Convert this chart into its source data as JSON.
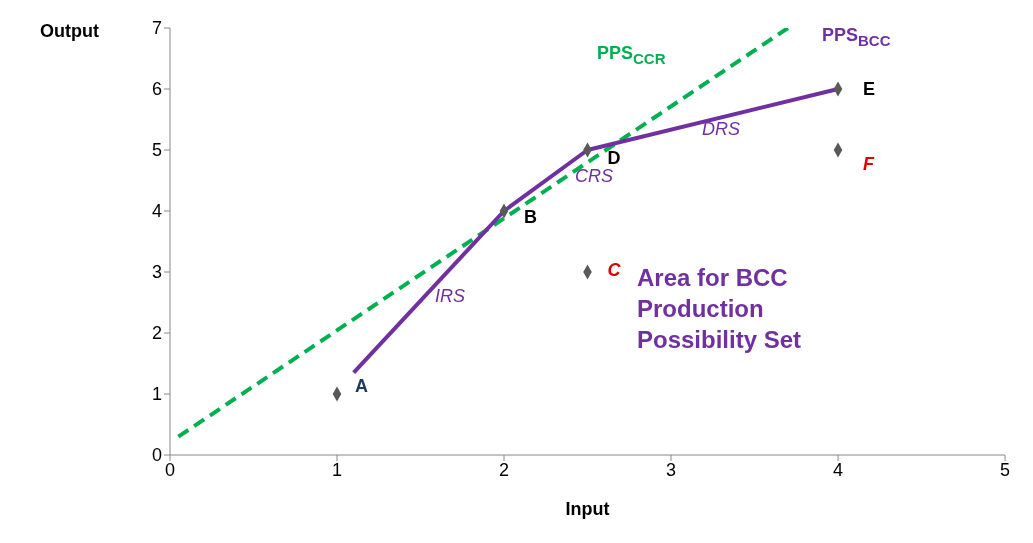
{
  "chart_data": {
    "type": "scatter",
    "xlabel": "Input",
    "ylabel": "Output",
    "xlim": [
      0,
      5
    ],
    "ylim": [
      0,
      7
    ],
    "xticks": [
      0,
      1,
      2,
      3,
      4,
      5
    ],
    "yticks": [
      0,
      1,
      2,
      3,
      4,
      5,
      6,
      7
    ],
    "grid": false,
    "legend": false,
    "series": [
      {
        "type": "line",
        "color": "#00b050",
        "line_style": "dashed",
        "marker": "none",
        "x": [
          0.05,
          3.7
        ],
        "values": [
          0.3,
          7
        ]
      },
      {
        "type": "line",
        "color": "#7030a0",
        "line_style": "solid",
        "marker": "none",
        "x": [
          1.1,
          2,
          2.5,
          4
        ],
        "values": [
          1.35,
          4,
          5,
          6
        ]
      },
      {
        "color": "#595959",
        "marker": "diamond",
        "x": [
          1,
          2,
          2.5,
          2.5,
          4,
          4
        ],
        "values": [
          1,
          4,
          3,
          5,
          6,
          5
        ]
      }
    ],
    "annotations": [
      {
        "text": "A",
        "x": 1,
        "y": 1
      },
      {
        "text": "B",
        "x": 2,
        "y": 4
      },
      {
        "text": "C",
        "x": 2.5,
        "y": 3
      },
      {
        "text": "D",
        "x": 2.5,
        "y": 5
      },
      {
        "text": "E",
        "x": 4,
        "y": 6
      },
      {
        "text": "F",
        "x": 4,
        "y": 5
      },
      "PPS$_{CCR}$",
      "PPS$_{BCC}$",
      "IRS",
      "CRS",
      "DRS",
      "Area for BCC\nProduction\nPossibility Set"
    ]
  }
}
